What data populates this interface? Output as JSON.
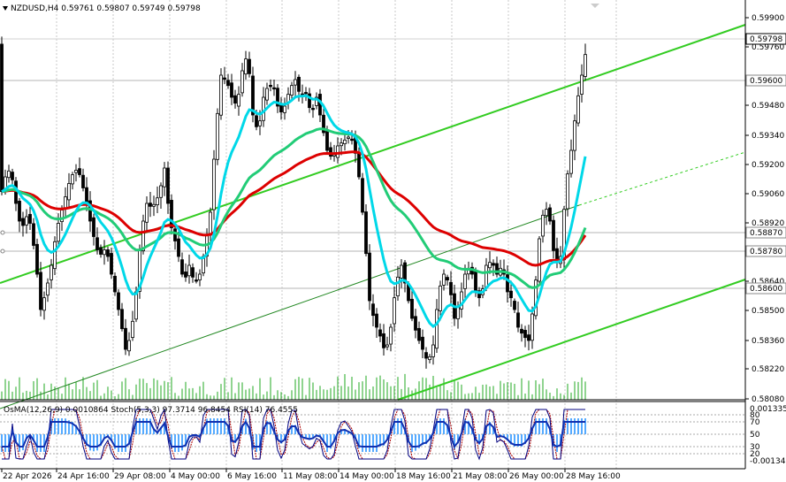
{
  "window": {
    "title": "NZDUSD,H4  0.59761 0.59807 0.59749 0.59798",
    "collapse_icon": "triangle-down-icon"
  },
  "price_axis": {
    "ticks": [
      "0.59900",
      "0.59760",
      "0.59480",
      "0.59340",
      "0.59200",
      "0.59060",
      "0.58920",
      "0.58640",
      "0.58500",
      "0.58360",
      "0.58220",
      "0.58080"
    ],
    "current_price": "0.59798",
    "level_labels": [
      "0.59600",
      "0.58870",
      "0.58780",
      "0.58600"
    ]
  },
  "time_axis": {
    "labels": [
      "22 Apr 2026",
      "24 Apr 16:00",
      "29 Apr 08:00",
      "4 May 00:00",
      "6 May 16:00",
      "11 May 08:00",
      "14 May 00:00",
      "18 May 16:00",
      "21 May 08:00",
      "26 May 00:00",
      "28 May 16:00"
    ]
  },
  "indicator": {
    "title": "OsMA(12,26,9) 0.0010864  Stoch(5,3,3) 97.3714 96.8454  RSI(14) 76.4555",
    "axis_labels": [
      "0.0013353",
      "80",
      "70",
      "50",
      "30",
      "20",
      "-0.001348"
    ]
  },
  "colors": {
    "candle": "#000000",
    "volume": "#22aa22",
    "ema_fast": "#00d8e8",
    "ema_mid": "#22cc77",
    "ema_slow": "#dd0000",
    "channel": "#33cc22",
    "osma": "#55aaff",
    "stoch_main": "#000080",
    "stoch_signal": "#aa0000"
  }
}
